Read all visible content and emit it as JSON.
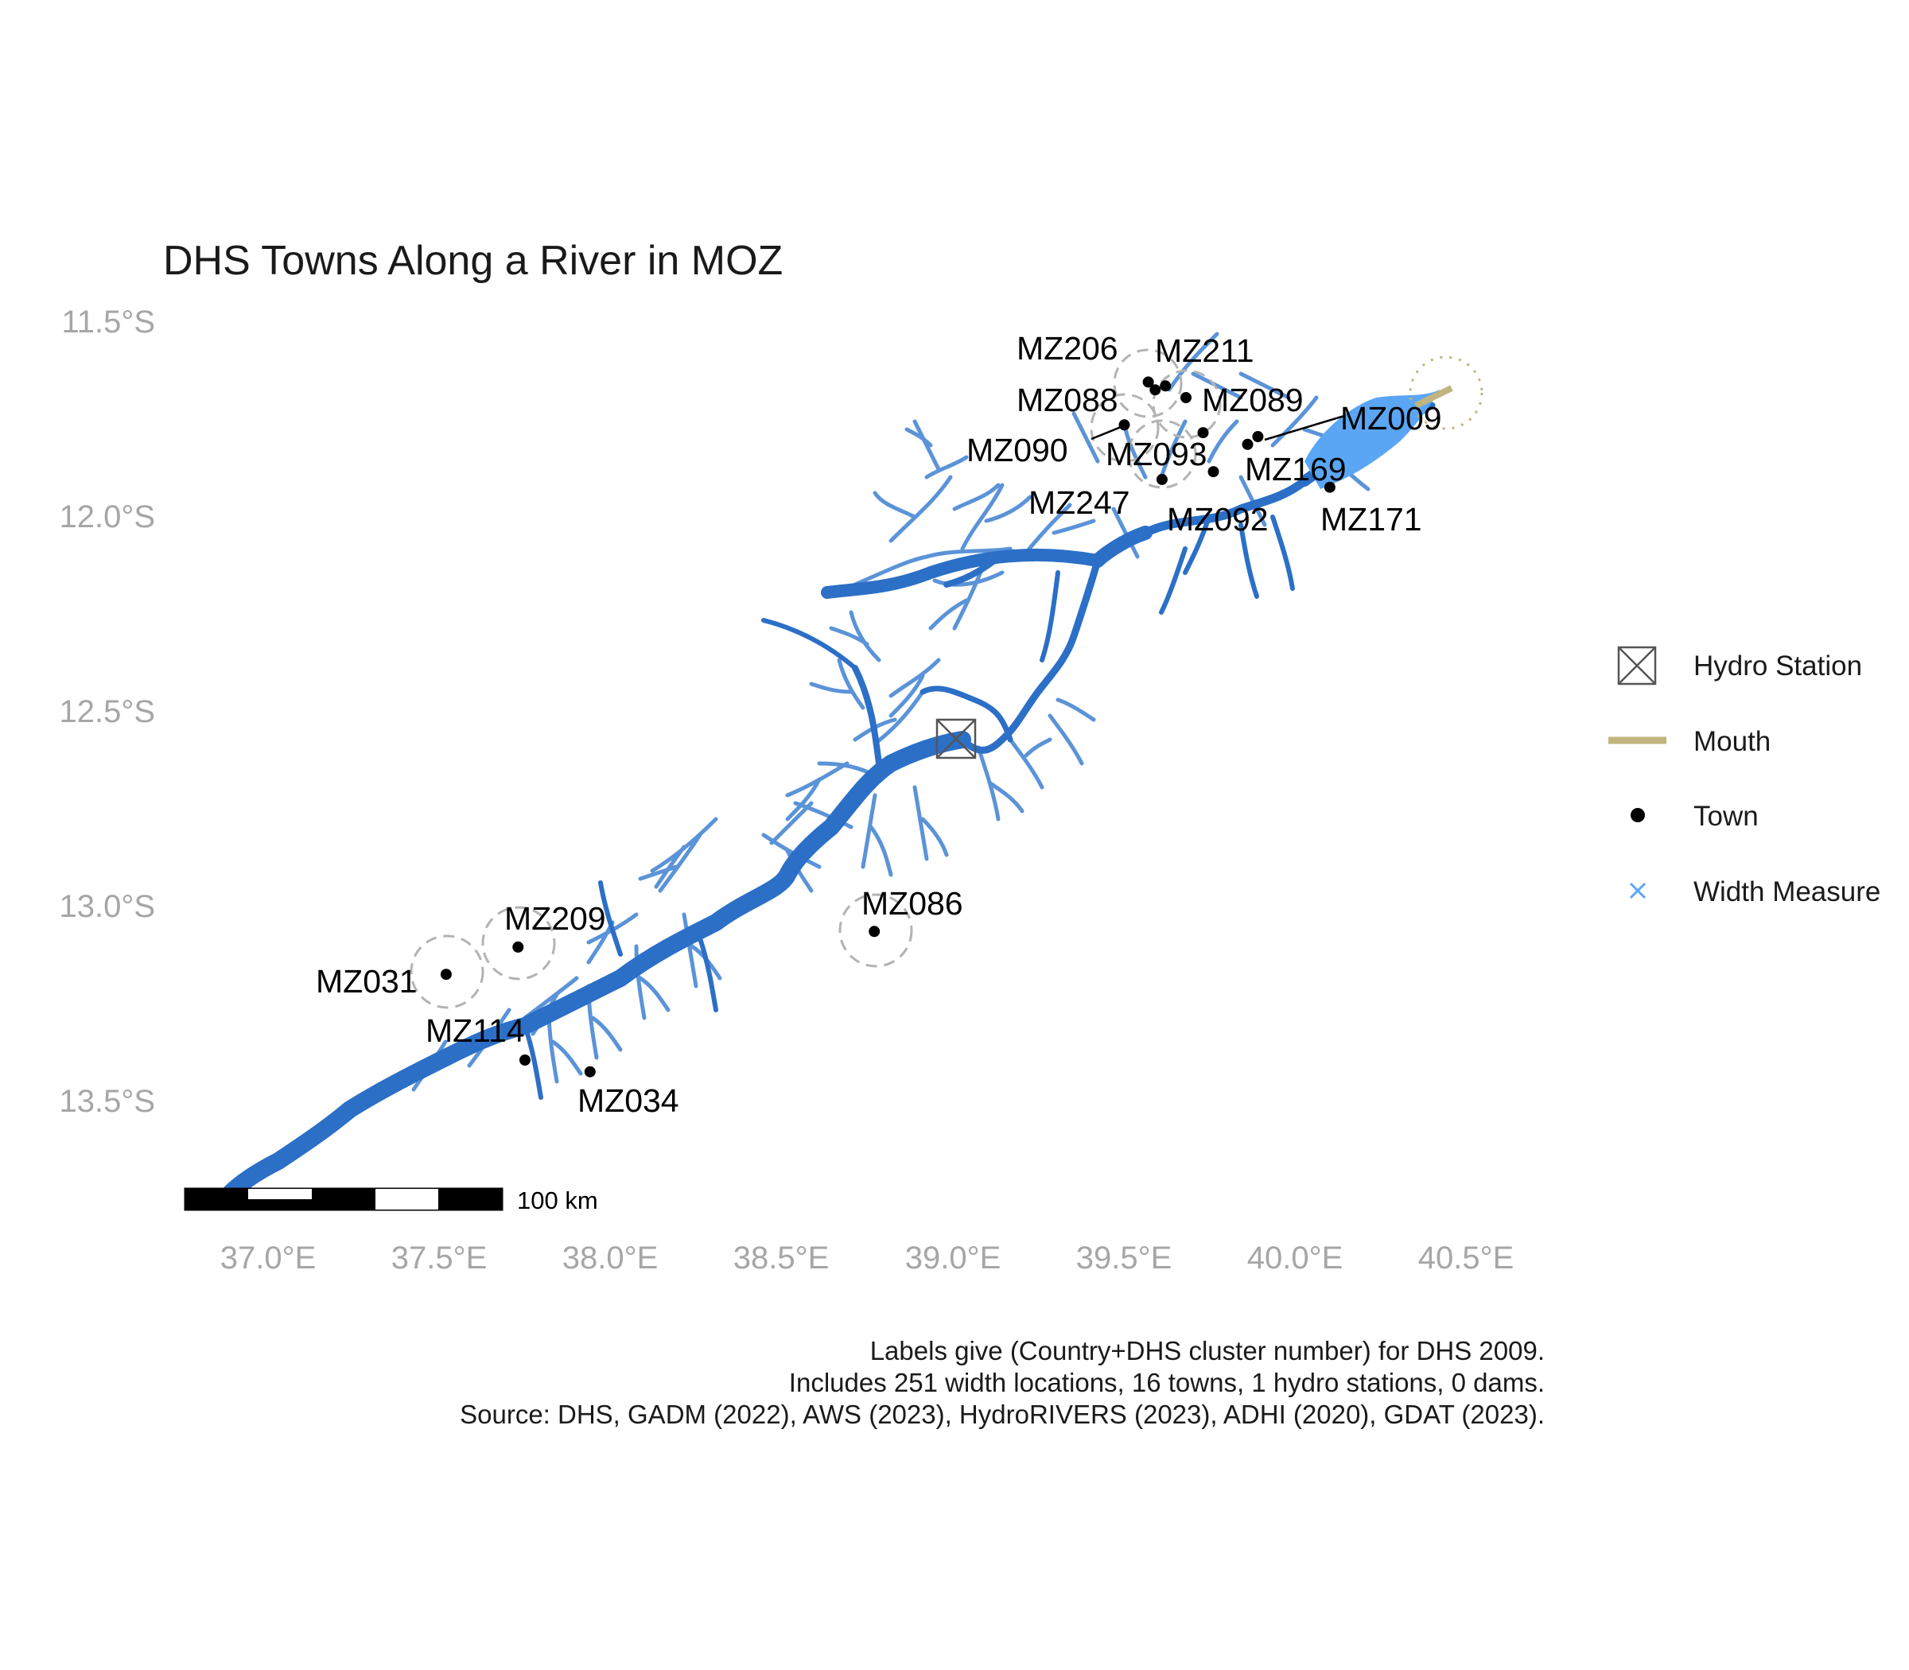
{
  "title": "DHS Towns Along a River in MOZ",
  "colors": {
    "main_river": "#2b6fc7",
    "tributary": "#5b93d8",
    "width_measure": "#5aa6f5",
    "mouth": "#c2b47e",
    "town": "#000000",
    "buffer_circle": "#b3b3b3",
    "axis_text": "#a6a6a6"
  },
  "axes": {
    "lat_labels": [
      "11.5°S",
      "12.0°S",
      "12.5°S",
      "13.0°S",
      "13.5°S"
    ],
    "lon_labels": [
      "37.0°E",
      "37.5°E",
      "38.0°E",
      "38.5°E",
      "39.0°E",
      "39.5°E",
      "40.0°E",
      "40.5°E"
    ]
  },
  "towns": [
    {
      "id": "MZ206",
      "lon": 39.57,
      "lat": -11.66
    },
    {
      "id": "MZ211",
      "lon": 39.62,
      "lat": -11.67
    },
    {
      "id": "MZ088",
      "lon": 39.59,
      "lat": -11.68
    },
    {
      "id": "MZ089",
      "lon": 39.68,
      "lat": -11.7
    },
    {
      "id": "MZ009",
      "lon": 39.89,
      "lat": -11.8
    },
    {
      "id": "MZ090",
      "lon": 39.5,
      "lat": -11.77
    },
    {
      "id": "MZ093",
      "lon": 39.73,
      "lat": -11.79
    },
    {
      "id": "MZ169",
      "lon": 39.86,
      "lat": -11.82
    },
    {
      "id": "MZ247",
      "lon": 39.61,
      "lat": -11.91
    },
    {
      "id": "MZ092",
      "lon": 39.76,
      "lat": -11.89
    },
    {
      "id": "MZ171",
      "lon": 40.1,
      "lat": -11.93
    },
    {
      "id": "MZ086",
      "lon": 38.77,
      "lat": -13.07
    },
    {
      "id": "MZ209",
      "lon": 37.73,
      "lat": -13.11
    },
    {
      "id": "MZ031",
      "lon": 37.52,
      "lat": -13.18
    },
    {
      "id": "MZ114",
      "lon": 37.75,
      "lat": -13.4
    },
    {
      "id": "MZ034",
      "lon": 37.94,
      "lat": -13.43
    }
  ],
  "hydro_station": {
    "lon": 39.01,
    "lat": -12.57
  },
  "mouth": {
    "lon": 40.43,
    "lat": -11.7
  },
  "legend": {
    "items": [
      {
        "label": "Hydro Station",
        "icon": "hydro-station-icon"
      },
      {
        "label": "Mouth",
        "icon": "mouth-line-icon"
      },
      {
        "label": "Town",
        "icon": "town-dot-icon"
      },
      {
        "label": "Width Measure",
        "icon": "width-measure-x-icon"
      }
    ]
  },
  "scale_bar": {
    "label": "100 km"
  },
  "caption": {
    "line1": "Labels give (Country+DHS cluster number) for DHS 2009.",
    "line2": "Includes 251 width locations, 16 towns, 1 hydro stations, 0 dams.",
    "line3": "Source: DHS, GADM (2022), AWS (2023), HydroRIVERS (2023), ADHI (2020), GDAT (2023)."
  }
}
